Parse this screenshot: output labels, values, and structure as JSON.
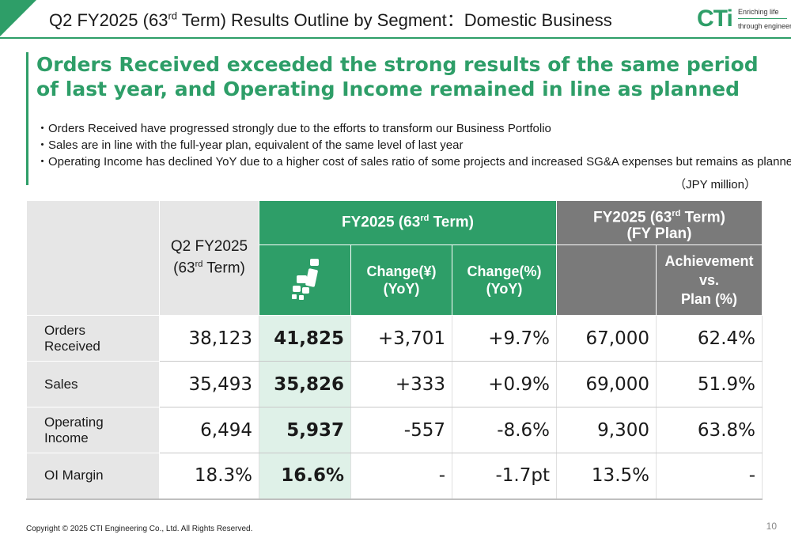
{
  "header": {
    "title_pre": "Q2 FY2025 (63",
    "title_sup": "rd",
    "title_post": " Term) Results Outline by Segment：Domestic Business",
    "logo_text": "CTi",
    "logo_tagline_1": "Enriching life",
    "logo_tagline_2": "through engineering",
    "accent_color": "#2e9e68"
  },
  "headline": "Orders Received exceeded the strong results of the same period of last year, and Operating Income remained in line as planned",
  "bullets": [
    "・Orders Received have progressed strongly due to the efforts to transform our Business Portfolio",
    "・Sales are in line with the full-year plan, equivalent of the same level of last year",
    "・Operating Income has declined YoY due to a higher cost of sales ratio of some projects and increased SG&A expenses but remains as planned."
  ],
  "unit": "（JPY million）",
  "table": {
    "q2_prev_header": {
      "line1": "Q2 FY2025",
      "line2_pre": "(63",
      "line2_sup": "rd",
      "line2_post": " Term)"
    },
    "fy2025_header": {
      "pre": "FY2025 (63",
      "sup": "rd",
      "post": " Term)"
    },
    "fy_plan_header": {
      "line1_pre": "FY2025 (63",
      "line1_sup": "rd",
      "line1_post": " Term)",
      "line2": "(FY Plan)"
    },
    "change_yen_header": {
      "line1": "Change(¥)",
      "line2": "(YoY)"
    },
    "change_pct_header": {
      "line1": "Change(%)",
      "line2": "(YoY)"
    },
    "achievement_header": {
      "line1": "Achievement",
      "line2": "vs.",
      "line3": "Plan (%)"
    },
    "rows": [
      {
        "label1": "Orders",
        "label2": "Received",
        "prev": "38,123",
        "current": "41,825",
        "change_yen": "+3,701",
        "change_pct": "+9.7%",
        "plan": "67,000",
        "achievement": "62.4%"
      },
      {
        "label1": "Sales",
        "label2": "",
        "prev": "35,493",
        "current": "35,826",
        "change_yen": "+333",
        "change_pct": "+0.9%",
        "plan": "69,000",
        "achievement": "51.9%"
      },
      {
        "label1": "Operating",
        "label2": "Income",
        "prev": "6,494",
        "current": "5,937",
        "change_yen": "-557",
        "change_pct": "-8.6%",
        "plan": "9,300",
        "achievement": "63.8%"
      },
      {
        "label1": "OI Margin",
        "label2": "",
        "prev": "18.3%",
        "current": "16.6%",
        "change_yen": "-",
        "change_pct": "-1.7pt",
        "plan": "13.5%",
        "achievement": "-"
      }
    ]
  },
  "footer": {
    "copyright": "Copyright © 2025 CTI Engineering Co., Ltd. All Rights Reserved.",
    "page_number": "10"
  }
}
